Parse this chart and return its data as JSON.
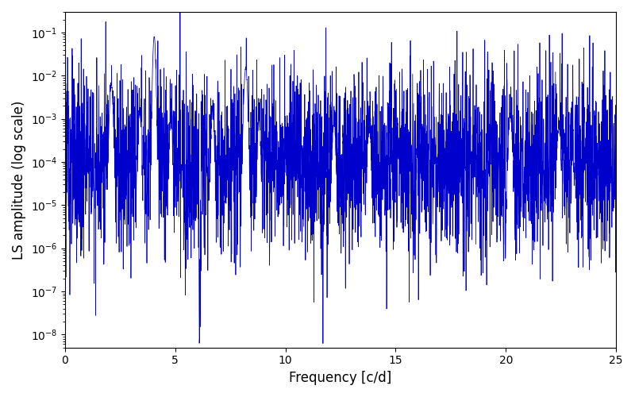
{
  "title": "",
  "xlabel": "Frequency [c/d]",
  "ylabel": "LS amplitude (log scale)",
  "line_color": "#0000CC",
  "xlim": [
    0,
    25
  ],
  "ylim": [
    5e-09,
    0.3
  ],
  "background_color": "#ffffff",
  "figsize": [
    8.0,
    5.0
  ],
  "dpi": 100,
  "linewidth": 0.55,
  "xticks": [
    0,
    5,
    10,
    15,
    20,
    25
  ],
  "peak1_freq": 4.05,
  "peak1_amp": 0.08,
  "peak2_freq": 8.2,
  "peak2_amp": 0.014,
  "dip_freq": 6.1,
  "dip_amp": 8e-09,
  "base_log_mean": -9.0,
  "base_log_std": 1.2,
  "n_points": 3500,
  "freq_min": 0.001,
  "freq_max": 25.0
}
